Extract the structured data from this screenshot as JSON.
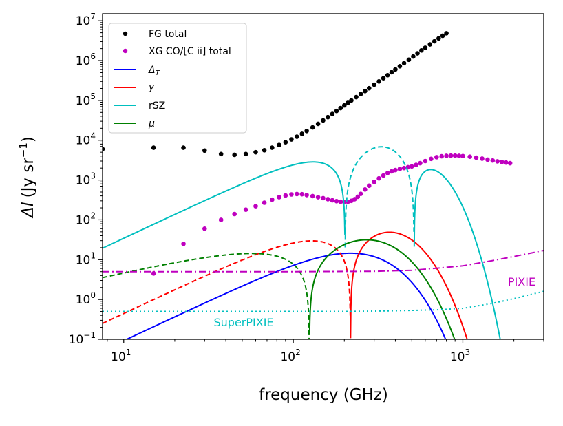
{
  "chart_data": {
    "type": "line",
    "xscale": "log",
    "yscale": "log",
    "xlim": [
      7.5,
      3000
    ],
    "ylim": [
      0.1,
      15000000
    ],
    "xlabel": "frequency (GHz)",
    "ylabel_main": "ΔI",
    "ylabel_units": "(Jy sr",
    "ylabel_sup": "−1",
    "ylabel_close": ")",
    "x_major_ticks": [
      {
        "value": 10,
        "base": "10",
        "exp": "1"
      },
      {
        "value": 100,
        "base": "10",
        "exp": "2"
      },
      {
        "value": 1000,
        "base": "10",
        "exp": "3"
      }
    ],
    "y_major_ticks": [
      {
        "value": 0.1,
        "base": "10",
        "exp": "−1"
      },
      {
        "value": 1,
        "base": "10",
        "exp": "0"
      },
      {
        "value": 10,
        "base": "10",
        "exp": "1"
      },
      {
        "value": 100,
        "base": "10",
        "exp": "2"
      },
      {
        "value": 1000,
        "base": "10",
        "exp": "3"
      },
      {
        "value": 10000,
        "base": "10",
        "exp": "4"
      },
      {
        "value": 100000,
        "base": "10",
        "exp": "5"
      },
      {
        "value": 1000000,
        "base": "10",
        "exp": "6"
      },
      {
        "value": 10000000,
        "base": "10",
        "exp": "7"
      }
    ],
    "series": [
      {
        "name": "FG total",
        "style": "dots",
        "color": "#000000",
        "points": [
          [
            7.5,
            6000
          ],
          [
            15,
            6500
          ],
          [
            22.5,
            6500
          ],
          [
            30,
            5500
          ],
          [
            37.5,
            4500
          ],
          [
            45,
            4300
          ],
          [
            52.5,
            4500
          ],
          [
            60,
            5000
          ],
          [
            67.5,
            5600
          ],
          [
            75,
            6500
          ],
          [
            82.5,
            7600
          ],
          [
            90,
            8900
          ],
          [
            97.5,
            10500
          ],
          [
            105,
            12300
          ],
          [
            112.5,
            14500
          ],
          [
            120,
            17100
          ],
          [
            130,
            21000
          ],
          [
            140,
            25800
          ],
          [
            150,
            31500
          ],
          [
            160,
            38000
          ],
          [
            170,
            45700
          ],
          [
            180,
            54400
          ],
          [
            190,
            64200
          ],
          [
            200,
            75000
          ],
          [
            210,
            87000
          ],
          [
            220,
            100000
          ],
          [
            235,
            121000
          ],
          [
            250,
            145000
          ],
          [
            265,
            172000
          ],
          [
            280,
            202000
          ],
          [
            300,
            248000
          ],
          [
            320,
            300000
          ],
          [
            340,
            360000
          ],
          [
            360,
            430000
          ],
          [
            380,
            510000
          ],
          [
            400,
            600000
          ],
          [
            425,
            720000
          ],
          [
            450,
            860000
          ],
          [
            480,
            1050000
          ],
          [
            510,
            1270000
          ],
          [
            540,
            1520000
          ],
          [
            570,
            1800000
          ],
          [
            600,
            2100000
          ],
          [
            640,
            2550000
          ],
          [
            680,
            3050000
          ],
          [
            720,
            3600000
          ],
          [
            760,
            4200000
          ],
          [
            800,
            4850000
          ]
        ]
      },
      {
        "name": "XG CO/[C ii] total",
        "style": "dots",
        "color": "#bf00bf",
        "points": [
          [
            15,
            4.5
          ],
          [
            22.5,
            25
          ],
          [
            30,
            60
          ],
          [
            37.5,
            100
          ],
          [
            45,
            140
          ],
          [
            52.5,
            180
          ],
          [
            60,
            220
          ],
          [
            67.5,
            270
          ],
          [
            75,
            320
          ],
          [
            82.5,
            370
          ],
          [
            90,
            410
          ],
          [
            97.5,
            435
          ],
          [
            105,
            445
          ],
          [
            112.5,
            440
          ],
          [
            120,
            420
          ],
          [
            130,
            395
          ],
          [
            140,
            370
          ],
          [
            150,
            350
          ],
          [
            160,
            330
          ],
          [
            170,
            310
          ],
          [
            180,
            295
          ],
          [
            190,
            285
          ],
          [
            200,
            280
          ],
          [
            210,
            285
          ],
          [
            220,
            300
          ],
          [
            230,
            330
          ],
          [
            240,
            380
          ],
          [
            250,
            450
          ],
          [
            265,
            580
          ],
          [
            280,
            720
          ],
          [
            300,
            900
          ],
          [
            320,
            1100
          ],
          [
            340,
            1300
          ],
          [
            360,
            1500
          ],
          [
            380,
            1650
          ],
          [
            400,
            1780
          ],
          [
            425,
            1900
          ],
          [
            450,
            2000
          ],
          [
            475,
            2100
          ],
          [
            500,
            2200
          ],
          [
            530,
            2400
          ],
          [
            560,
            2650
          ],
          [
            600,
            3000
          ],
          [
            650,
            3400
          ],
          [
            700,
            3750
          ],
          [
            750,
            3950
          ],
          [
            800,
            4050
          ],
          [
            850,
            4100
          ],
          [
            900,
            4100
          ],
          [
            950,
            4050
          ],
          [
            1000,
            4000
          ],
          [
            1100,
            3850
          ],
          [
            1200,
            3650
          ],
          [
            1300,
            3450
          ],
          [
            1400,
            3250
          ],
          [
            1500,
            3100
          ],
          [
            1600,
            2950
          ],
          [
            1700,
            2850
          ],
          [
            1800,
            2750
          ],
          [
            1900,
            2650
          ]
        ]
      },
      {
        "name": "Δ_T",
        "style": "solid",
        "color": "#0000ff",
        "model": "dT",
        "amp": 2.98
      },
      {
        "name": "y",
        "style": "solid",
        "color": "#ff0000",
        "model": "y",
        "amp": 7.2
      },
      {
        "name": "rSZ",
        "style": "solid",
        "color": "#00bfbf",
        "model": "rsz",
        "amp": 64
      },
      {
        "name": "μ",
        "style": "solid",
        "color": "#008000",
        "model": "mu",
        "amp": 28.6
      },
      {
        "name": "PIXIE",
        "style": "dashdot",
        "color": "#bf00bf",
        "points": [
          [
            7.5,
            5
          ],
          [
            100,
            5
          ],
          [
            300,
            5.1
          ],
          [
            500,
            5.4
          ],
          [
            700,
            6.1
          ],
          [
            1000,
            7
          ],
          [
            1500,
            9.5
          ],
          [
            2000,
            12
          ],
          [
            3000,
            17
          ]
        ]
      },
      {
        "name": "SuperPIXIE",
        "style": "dotted",
        "color": "#00bfbf",
        "points": [
          [
            7.5,
            0.5
          ],
          [
            200,
            0.5
          ],
          [
            400,
            0.52
          ],
          [
            700,
            0.55
          ],
          [
            1000,
            0.6
          ],
          [
            1500,
            0.8
          ],
          [
            2000,
            1.05
          ],
          [
            3000,
            1.6
          ]
        ]
      }
    ],
    "annotations": [
      {
        "text": "PIXIE",
        "color": "#bf00bf"
      },
      {
        "text": "SuperPIXIE",
        "color": "#00bfbf"
      }
    ],
    "legend": {
      "position": "top-left",
      "entries": [
        {
          "label": "FG total",
          "marker": "dot",
          "color": "#000000"
        },
        {
          "label": "XG CO/[C ii] total",
          "marker": "dot",
          "color": "#bf00bf"
        },
        {
          "label": "Δ_T",
          "marker": "line",
          "color": "#0000ff"
        },
        {
          "label": "y",
          "marker": "line",
          "color": "#ff0000"
        },
        {
          "label": "rSZ",
          "marker": "line",
          "color": "#00bfbf"
        },
        {
          "label": "μ",
          "marker": "line",
          "color": "#008000"
        }
      ]
    }
  }
}
